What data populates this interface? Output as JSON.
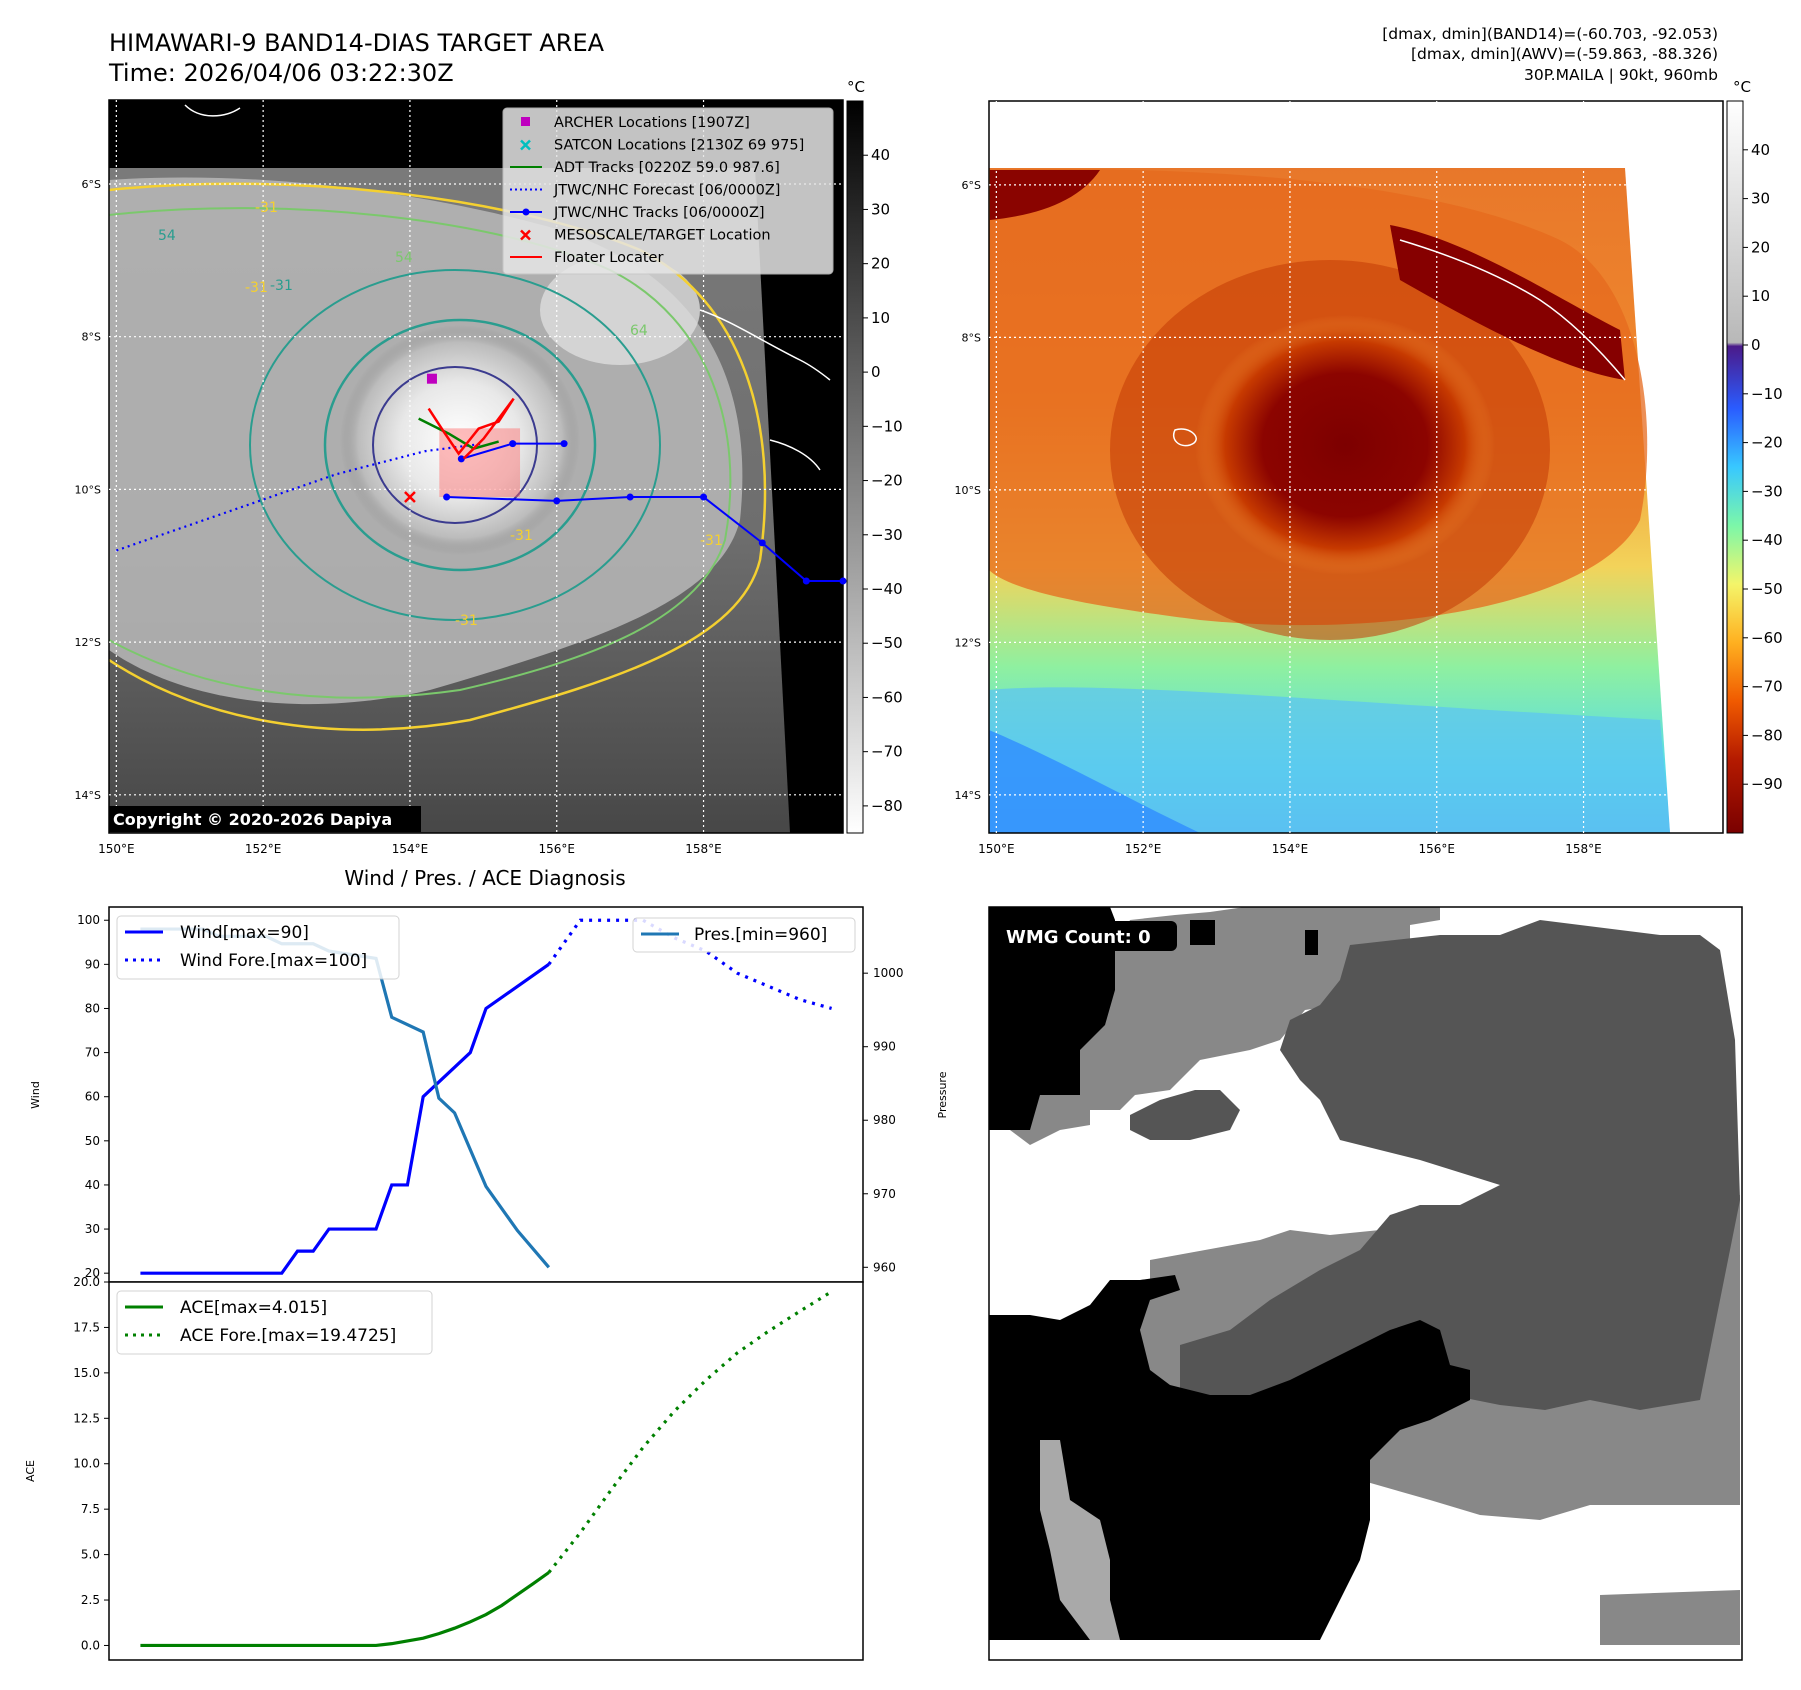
{
  "header": {
    "title": "HIMAWARI-9 BAND14-DIAS TARGET AREA",
    "time": "Time: 2026/04/06 03:22:30Z",
    "stats_band14": "[dmax, dmin](BAND14)=(-60.703, -92.053)",
    "stats_awv": "[dmax, dmin](AWV)=(-59.863, -88.326)",
    "storm_info": "30P.MAILA | 90kt, 960mb"
  },
  "map_axes": {
    "lon_labels": [
      "150°E",
      "152°E",
      "154°E",
      "156°E",
      "158°E"
    ],
    "lon_values": [
      150,
      152,
      154,
      156,
      158
    ],
    "lat_labels": [
      "6°S",
      "8°S",
      "10°S",
      "12°S",
      "14°S"
    ],
    "lat_values": [
      -6,
      -8,
      -10,
      -12,
      -14
    ],
    "lon_range": [
      149.9,
      159.9
    ],
    "lat_range": [
      -4.9,
      -14.5
    ]
  },
  "ir_panel": {
    "copyright": "Copyright © 2020-2026 Dapiya",
    "colorbar_unit": "°C",
    "colorbar_ticks": [
      "40",
      "30",
      "20",
      "10",
      "0",
      "−10",
      "−20",
      "−30",
      "−40",
      "−50",
      "−60",
      "−70",
      "−80"
    ],
    "colorbar_values": [
      40,
      30,
      20,
      10,
      0,
      -10,
      -20,
      -30,
      -40,
      -50,
      -60,
      -70,
      -80
    ],
    "colorbar_range": [
      -85,
      50
    ],
    "contour_labels": [
      "-31",
      "-31",
      "54",
      "54",
      "-31",
      "64",
      "-31",
      "-31",
      "-31"
    ],
    "legend": [
      {
        "label": "ARCHER Locations [1907Z]",
        "color": "#bf00bf",
        "marker": "square"
      },
      {
        "label": "SATCON Locations [2130Z 69 975]",
        "color": "#00bfbf",
        "marker": "x"
      },
      {
        "label": "ADT Tracks [0220Z 59.0 987.6]",
        "color": "#008000",
        "marker": "line"
      },
      {
        "label": "JTWC/NHC Forecast [06/0000Z]",
        "color": "#0000ff",
        "marker": "dotted"
      },
      {
        "label": "JTWC/NHC Tracks [06/0000Z]",
        "color": "#0000ff",
        "marker": "line-dot"
      },
      {
        "label": "MESOSCALE/TARGET Location",
        "color": "#ff0000",
        "marker": "x"
      },
      {
        "label": "Floater Locater",
        "color": "#ff0000",
        "marker": "line"
      }
    ],
    "jtwc_track": [
      [
        154.5,
        -10.1
      ],
      [
        156.0,
        -10.15
      ],
      [
        157.0,
        -10.1
      ],
      [
        158.0,
        -10.1
      ],
      [
        158.8,
        -10.7
      ],
      [
        159.4,
        -11.2
      ],
      [
        159.9,
        -11.2
      ]
    ],
    "jtwc_track_extra": [
      [
        154.7,
        -9.6
      ],
      [
        155.4,
        -9.4
      ],
      [
        156.1,
        -9.4
      ]
    ],
    "jtwc_forecast": [
      [
        150.0,
        -10.8
      ],
      [
        151.5,
        -10.3
      ],
      [
        153.0,
        -9.8
      ],
      [
        154.2,
        -9.5
      ],
      [
        155.0,
        -9.4
      ]
    ],
    "archer_point": [
      154.3,
      -8.55
    ],
    "target_point": [
      154.0,
      -10.1
    ]
  },
  "awv_panel": {
    "colorbar_unit": "°C",
    "colorbar_ticks": [
      "40",
      "30",
      "20",
      "10",
      "0",
      "−10",
      "−20",
      "−30",
      "−40",
      "−50",
      "−60",
      "−70",
      "−80",
      "−90"
    ],
    "colorbar_values": [
      40,
      30,
      20,
      10,
      0,
      -10,
      -20,
      -30,
      -40,
      -50,
      -60,
      -70,
      -80,
      -90
    ],
    "colorbar_range": [
      -100,
      50
    ]
  },
  "chart_data": [
    {
      "type": "line",
      "title": "Wind / Pres. / ACE Diagnosis",
      "ylabel": "Wind",
      "ylabel_right": "Pressure",
      "ylim": [
        18,
        103
      ],
      "ylim_right": [
        958,
        1009
      ],
      "xlim": [
        -2,
        46
      ],
      "yticks": [
        20,
        30,
        40,
        50,
        60,
        70,
        80,
        90,
        100
      ],
      "yticks_right": [
        960,
        970,
        980,
        990,
        1000
      ],
      "legend_left": [
        "Wind[max=90]",
        "Wind Fore.[max=100]"
      ],
      "legend_right": [
        "Pres.[min=960]"
      ],
      "series": [
        {
          "name": "Wind[max=90]",
          "color": "#0000ff",
          "style": "solid",
          "x": [
            0,
            9,
            10,
            11,
            12,
            15,
            16,
            17,
            18,
            21,
            22,
            24,
            26
          ],
          "y": [
            20,
            20,
            25,
            25,
            30,
            30,
            40,
            40,
            60,
            70,
            80,
            85,
            90
          ]
        },
        {
          "name": "Wind Fore.[max=100]",
          "color": "#0000ff",
          "style": "dotted",
          "x": [
            26,
            28,
            32,
            34,
            36,
            38,
            40,
            42,
            44
          ],
          "y": [
            90,
            100,
            100,
            96,
            93,
            88,
            85,
            82,
            80
          ]
        },
        {
          "name": "Pres.[min=960]",
          "color": "#1f77b4",
          "style": "solid",
          "axis": "right",
          "x": [
            0,
            4,
            5,
            8,
            9,
            11,
            12,
            15,
            16,
            18,
            19,
            20,
            22,
            24,
            26
          ],
          "y": [
            1006,
            1006,
            1005,
            1005,
            1004,
            1004,
            1003,
            1002,
            994,
            992,
            983,
            981,
            971,
            965,
            960
          ]
        }
      ]
    },
    {
      "type": "line",
      "ylabel": "ACE",
      "ylim": [
        -0.8,
        20.0
      ],
      "xlim": [
        -2,
        46
      ],
      "yticks": [
        0.0,
        2.5,
        5.0,
        7.5,
        10.0,
        12.5,
        15.0,
        17.5,
        20.0
      ],
      "ytick_labels": [
        "0.0",
        "2.5",
        "5.0",
        "7.5",
        "10.0",
        "12.5",
        "15.0",
        "17.5",
        "20.0"
      ],
      "legend": [
        "ACE[max=4.015]",
        "ACE Fore.[max=19.4725]"
      ],
      "series": [
        {
          "name": "ACE[max=4.015]",
          "color": "#008000",
          "style": "solid",
          "x": [
            0,
            4,
            8,
            12,
            15,
            16,
            17,
            18,
            19,
            20,
            21,
            22,
            23,
            24,
            25,
            26
          ],
          "y": [
            0,
            0,
            0,
            0,
            0,
            0.1,
            0.25,
            0.4,
            0.65,
            0.95,
            1.3,
            1.7,
            2.2,
            2.8,
            3.4,
            4.015
          ]
        },
        {
          "name": "ACE Fore.[max=19.4725]",
          "color": "#008000",
          "style": "dotted",
          "x": [
            26,
            28,
            30,
            32,
            34,
            36,
            38,
            40,
            42,
            44
          ],
          "y": [
            4.015,
            6.2,
            8.6,
            10.9,
            12.9,
            14.6,
            16.1,
            17.3,
            18.4,
            19.4725
          ]
        }
      ]
    }
  ],
  "wmg_panel": {
    "count_label": "WMG Count: 0"
  }
}
